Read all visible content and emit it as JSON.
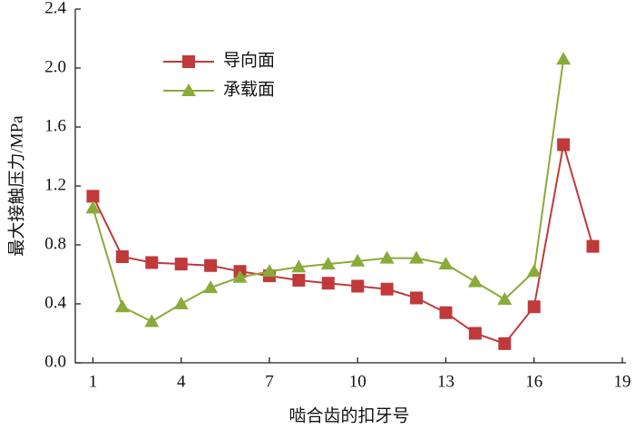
{
  "chart_data": {
    "type": "line",
    "x_label": "啮合齿的扣牙号",
    "y_label": "最大接触压力/MPa",
    "x": [
      1,
      2,
      3,
      4,
      5,
      6,
      7,
      8,
      9,
      10,
      11,
      12,
      13,
      14,
      15,
      16,
      17,
      18
    ],
    "series": [
      {
        "name": "导向面",
        "color": "#c0393b",
        "marker": "square",
        "values": [
          1.13,
          0.72,
          0.68,
          0.67,
          0.66,
          0.62,
          0.59,
          0.56,
          0.54,
          0.52,
          0.5,
          0.44,
          0.34,
          0.2,
          0.13,
          0.38,
          1.48,
          0.79
        ]
      },
      {
        "name": "承载面",
        "color": "#8aaa3a",
        "marker": "triangle",
        "values": [
          1.05,
          0.38,
          0.28,
          0.4,
          0.51,
          0.58,
          0.62,
          0.65,
          0.67,
          0.69,
          0.71,
          0.71,
          0.67,
          0.55,
          0.43,
          0.62,
          2.06,
          null
        ]
      }
    ],
    "xlim": [
      0.4,
      19
    ],
    "xticks": [
      1,
      4,
      7,
      10,
      13,
      16,
      19
    ],
    "ylim": [
      0,
      2.4
    ],
    "yticks": [
      {
        "value": 0,
        "label": "0.0"
      },
      0.4,
      0.8,
      1.2,
      1.6,
      {
        "value": 2,
        "label": "2.0"
      },
      2.4
    ],
    "legend": "upper left"
  }
}
